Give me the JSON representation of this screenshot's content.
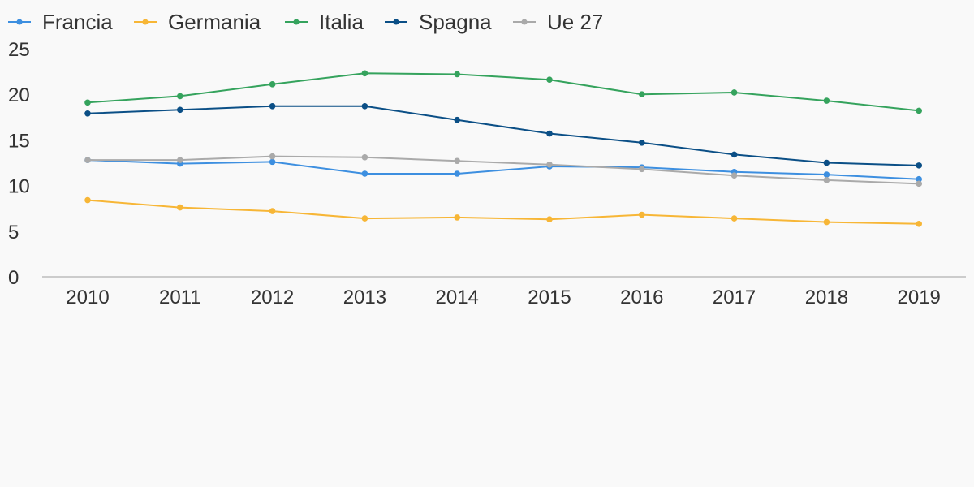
{
  "chart_data": {
    "type": "line",
    "categories": [
      "2010",
      "2011",
      "2012",
      "2013",
      "2014",
      "2015",
      "2016",
      "2017",
      "2018",
      "2019"
    ],
    "series": [
      {
        "name": "Francia",
        "color": "#3d8fe0",
        "values": [
          12.8,
          12.4,
          12.6,
          11.3,
          11.3,
          12.1,
          12.0,
          11.5,
          11.2,
          10.7
        ]
      },
      {
        "name": "Germania",
        "color": "#f7b636",
        "values": [
          8.4,
          7.6,
          7.2,
          6.4,
          6.5,
          6.3,
          6.8,
          6.4,
          6.0,
          5.8
        ]
      },
      {
        "name": "Italia",
        "color": "#35a35d",
        "values": [
          19.1,
          19.8,
          21.1,
          22.3,
          22.2,
          21.6,
          20.0,
          20.2,
          19.3,
          18.2
        ]
      },
      {
        "name": "Spagna",
        "color": "#0b4f86",
        "values": [
          17.9,
          18.3,
          18.7,
          18.7,
          17.2,
          15.7,
          14.7,
          13.4,
          12.5,
          12.2
        ]
      },
      {
        "name": "Ue 27",
        "color": "#aaaaaa",
        "values": [
          12.8,
          12.8,
          13.2,
          13.1,
          12.7,
          12.3,
          11.8,
          11.1,
          10.6,
          10.2
        ]
      }
    ],
    "y_ticks": [
      "0",
      "5",
      "10",
      "15",
      "20",
      "25"
    ],
    "ylim": [
      0,
      25
    ],
    "grid": false,
    "legend_position": "top-left"
  }
}
